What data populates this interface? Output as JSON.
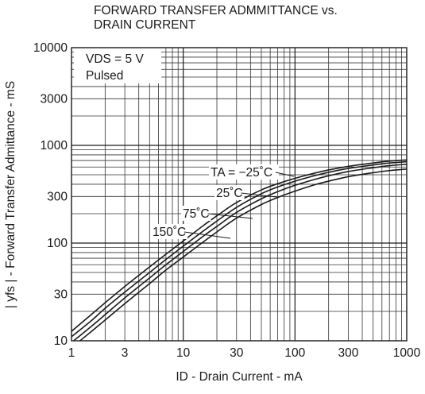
{
  "chart_data": {
    "type": "line",
    "title_lines": [
      "FORWARD TRANSFER ADMMITTANCE vs.",
      "DRAIN CURRENT"
    ],
    "xlabel": "ID - Drain Current - mA",
    "ylabel": "| yfs | - Forward Transfer Admittance - mS",
    "x_scale": "log",
    "y_scale": "log",
    "xlim": [
      1,
      1000
    ],
    "ylim": [
      10,
      10000
    ],
    "grid": true,
    "x_ticks": [
      {
        "value": 1,
        "label": "1"
      },
      {
        "value": 3,
        "label": "3"
      },
      {
        "value": 10,
        "label": "10"
      },
      {
        "value": 30,
        "label": "30"
      },
      {
        "value": 100,
        "label": "100"
      },
      {
        "value": 300,
        "label": "300"
      },
      {
        "value": 1000,
        "label": "1000"
      }
    ],
    "y_ticks": [
      {
        "value": 10,
        "label": "10"
      },
      {
        "value": 30,
        "label": "30"
      },
      {
        "value": 100,
        "label": "100"
      },
      {
        "value": 300,
        "label": "300"
      },
      {
        "value": 1000,
        "label": "1000"
      },
      {
        "value": 3000,
        "label": "3000"
      },
      {
        "value": 10000,
        "label": "10000"
      }
    ],
    "conditions": [
      "VDS = 5 V",
      "Pulsed"
    ],
    "x": [
      1,
      1.5,
      2,
      3,
      5,
      7,
      10,
      15,
      20,
      30,
      50,
      70,
      100,
      150,
      200,
      300,
      500,
      700,
      1000
    ],
    "series": [
      {
        "name": "TA = −25˚C",
        "values": [
          12.5,
          18.5,
          24.5,
          36,
          57,
          77,
          105,
          150,
          190,
          260,
          350,
          405,
          460,
          520,
          560,
          610,
          660,
          690,
          710
        ]
      },
      {
        "name": "25˚C",
        "values": [
          11,
          16,
          21.5,
          31.5,
          50,
          68,
          93,
          132,
          168,
          232,
          320,
          375,
          430,
          490,
          530,
          580,
          630,
          660,
          680
        ]
      },
      {
        "name": "75˚C",
        "values": [
          9.6,
          14,
          18.5,
          27.5,
          44,
          60,
          82,
          117,
          148,
          206,
          284,
          336,
          390,
          448,
          488,
          540,
          590,
          620,
          640
        ]
      },
      {
        "name": "150˚C",
        "values": [
          8.5,
          12.4,
          16.3,
          24,
          38.5,
          53,
          72,
          102,
          130,
          180,
          248,
          293,
          340,
          395,
          430,
          478,
          525,
          552,
          572
        ]
      }
    ],
    "series_style": {
      "color": "#1a1a1a"
    }
  }
}
